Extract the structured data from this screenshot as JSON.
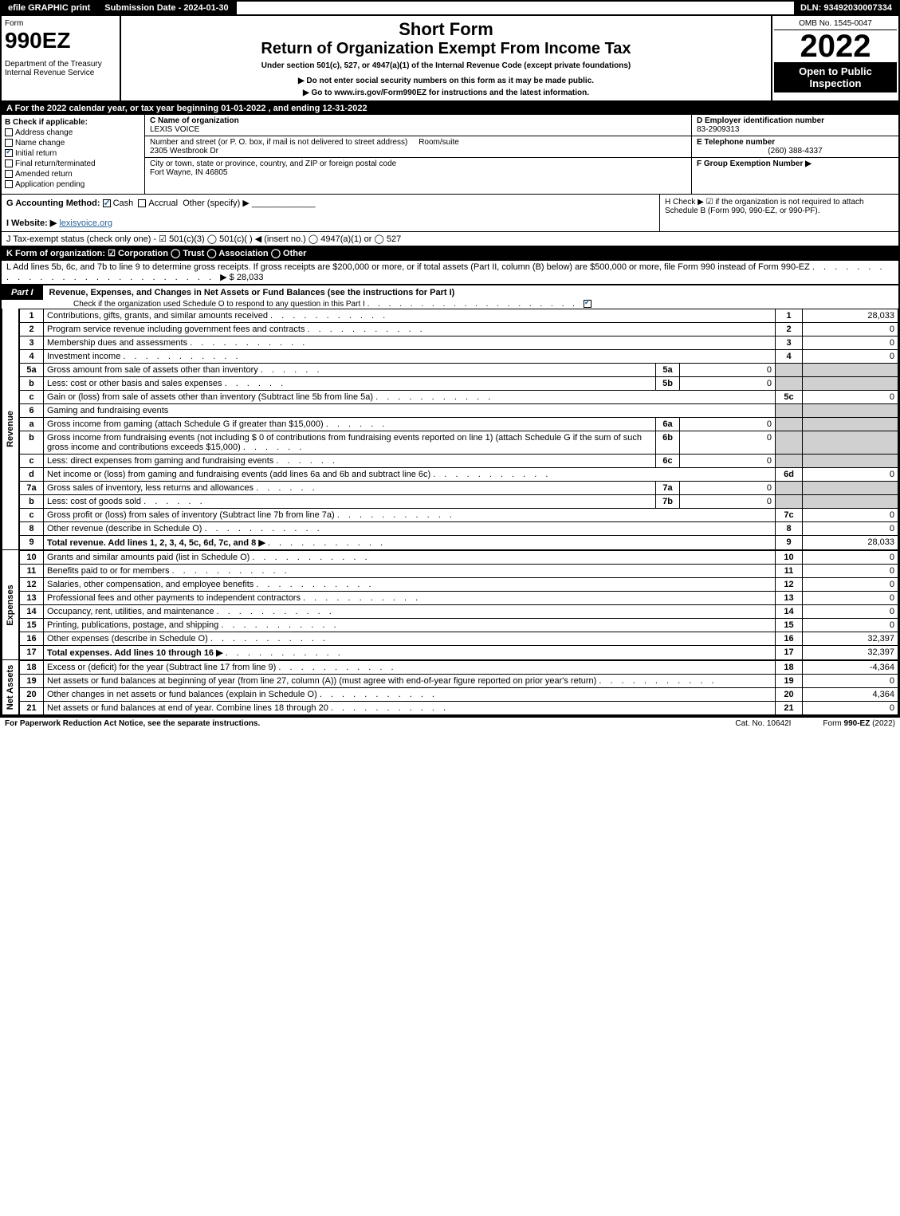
{
  "top_bar": {
    "efile": "efile GRAPHIC print",
    "submission": "Submission Date - 2024-01-30",
    "dln": "DLN: 93492030007334"
  },
  "header": {
    "form_label": "Form",
    "form_number": "990EZ",
    "dept": "Department of the Treasury\nInternal Revenue Service",
    "short_form": "Short Form",
    "return_title": "Return of Organization Exempt From Income Tax",
    "under_section": "Under section 501(c), 527, or 4947(a)(1) of the Internal Revenue Code (except private foundations)",
    "do_not_enter": "▶ Do not enter social security numbers on this form as it may be made public.",
    "go_to": "▶ Go to www.irs.gov/Form990EZ for instructions and the latest information.",
    "omb": "OMB No. 1545-0047",
    "year": "2022",
    "open_to": "Open to Public Inspection"
  },
  "line_a": "A  For the 2022 calendar year, or tax year beginning 01-01-2022 , and ending 12-31-2022",
  "b": {
    "header": "B  Check if applicable:",
    "items": [
      {
        "label": "Address change",
        "checked": false
      },
      {
        "label": "Name change",
        "checked": false
      },
      {
        "label": "Initial return",
        "checked": true
      },
      {
        "label": "Final return/terminated",
        "checked": false
      },
      {
        "label": "Amended return",
        "checked": false
      },
      {
        "label": "Application pending",
        "checked": false
      }
    ]
  },
  "c": {
    "name_label": "C Name of organization",
    "name": "LEXIS VOICE",
    "street_label": "Number and street (or P. O. box, if mail is not delivered to street address)",
    "room_label": "Room/suite",
    "street": "2305 Westbrook Dr",
    "city_label": "City or town, state or province, country, and ZIP or foreign postal code",
    "city": "Fort Wayne, IN  46805"
  },
  "d": {
    "ein_label": "D Employer identification number",
    "ein": "83-2909313",
    "phone_label": "E Telephone number",
    "phone": "(260) 388-4337",
    "group_label": "F Group Exemption Number  ▶"
  },
  "g": {
    "label": "G Accounting Method:",
    "cash": "Cash",
    "accrual": "Accrual",
    "other": "Other (specify) ▶"
  },
  "h": {
    "text": "H  Check ▶ ☑ if the organization is not required to attach Schedule B (Form 990, 990-EZ, or 990-PF)."
  },
  "i": {
    "label": "I Website: ▶",
    "value": "lexisvoice.org"
  },
  "j": {
    "label": "J Tax-exempt status (check only one) - ☑ 501(c)(3)  ◯ 501(c)(  ) ◀ (insert no.)  ◯ 4947(a)(1) or  ◯ 527"
  },
  "k": {
    "label": "K Form of organization:  ☑ Corporation   ◯ Trust   ◯ Association   ◯ Other"
  },
  "l": {
    "text": "L Add lines 5b, 6c, and 7b to line 9 to determine gross receipts. If gross receipts are $200,000 or more, or if total assets (Part II, column (B) below) are $500,000 or more, file Form 990 instead of Form 990-EZ",
    "amount": "▶ $ 28,033"
  },
  "part1": {
    "tab": "Part I",
    "title": "Revenue, Expenses, and Changes in Net Assets or Fund Balances (see the instructions for Part I)",
    "check_line": "Check if the organization used Schedule O to respond to any question in this Part I"
  },
  "revenue": {
    "side_label": "Revenue",
    "rows": [
      {
        "n": "1",
        "desc": "Contributions, gifts, grants, and similar amounts received",
        "rn": "1",
        "amt": "28,033"
      },
      {
        "n": "2",
        "desc": "Program service revenue including government fees and contracts",
        "rn": "2",
        "amt": "0"
      },
      {
        "n": "3",
        "desc": "Membership dues and assessments",
        "rn": "3",
        "amt": "0"
      },
      {
        "n": "4",
        "desc": "Investment income",
        "rn": "4",
        "amt": "0"
      },
      {
        "n": "5a",
        "desc": "Gross amount from sale of assets other than inventory",
        "sub_lbl": "5a",
        "sub_amt": "0"
      },
      {
        "n": "b",
        "desc": "Less: cost or other basis and sales expenses",
        "sub_lbl": "5b",
        "sub_amt": "0"
      },
      {
        "n": "c",
        "desc": "Gain or (loss) from sale of assets other than inventory (Subtract line 5b from line 5a)",
        "rn": "5c",
        "amt": "0"
      },
      {
        "n": "6",
        "desc": "Gaming and fundraising events"
      },
      {
        "n": "a",
        "desc": "Gross income from gaming (attach Schedule G if greater than $15,000)",
        "sub_lbl": "6a",
        "sub_amt": "0"
      },
      {
        "n": "b",
        "desc": "Gross income from fundraising events (not including $ 0 of contributions from fundraising events reported on line 1) (attach Schedule G if the sum of such gross income and contributions exceeds $15,000)",
        "sub_lbl": "6b",
        "sub_amt": "0"
      },
      {
        "n": "c",
        "desc": "Less: direct expenses from gaming and fundraising events",
        "sub_lbl": "6c",
        "sub_amt": "0"
      },
      {
        "n": "d",
        "desc": "Net income or (loss) from gaming and fundraising events (add lines 6a and 6b and subtract line 6c)",
        "rn": "6d",
        "amt": "0"
      },
      {
        "n": "7a",
        "desc": "Gross sales of inventory, less returns and allowances",
        "sub_lbl": "7a",
        "sub_amt": "0"
      },
      {
        "n": "b",
        "desc": "Less: cost of goods sold",
        "sub_lbl": "7b",
        "sub_amt": "0"
      },
      {
        "n": "c",
        "desc": "Gross profit or (loss) from sales of inventory (Subtract line 7b from line 7a)",
        "rn": "7c",
        "amt": "0"
      },
      {
        "n": "8",
        "desc": "Other revenue (describe in Schedule O)",
        "rn": "8",
        "amt": "0"
      },
      {
        "n": "9",
        "desc": "Total revenue. Add lines 1, 2, 3, 4, 5c, 6d, 7c, and 8   ▶",
        "rn": "9",
        "amt": "28,033",
        "bold": true
      }
    ]
  },
  "expenses": {
    "side_label": "Expenses",
    "rows": [
      {
        "n": "10",
        "desc": "Grants and similar amounts paid (list in Schedule O)",
        "rn": "10",
        "amt": "0"
      },
      {
        "n": "11",
        "desc": "Benefits paid to or for members",
        "rn": "11",
        "amt": "0"
      },
      {
        "n": "12",
        "desc": "Salaries, other compensation, and employee benefits",
        "rn": "12",
        "amt": "0"
      },
      {
        "n": "13",
        "desc": "Professional fees and other payments to independent contractors",
        "rn": "13",
        "amt": "0"
      },
      {
        "n": "14",
        "desc": "Occupancy, rent, utilities, and maintenance",
        "rn": "14",
        "amt": "0"
      },
      {
        "n": "15",
        "desc": "Printing, publications, postage, and shipping",
        "rn": "15",
        "amt": "0"
      },
      {
        "n": "16",
        "desc": "Other expenses (describe in Schedule O)",
        "rn": "16",
        "amt": "32,397"
      },
      {
        "n": "17",
        "desc": "Total expenses. Add lines 10 through 16   ▶",
        "rn": "17",
        "amt": "32,397",
        "bold": true
      }
    ]
  },
  "net_assets": {
    "side_label": "Net Assets",
    "rows": [
      {
        "n": "18",
        "desc": "Excess or (deficit) for the year (Subtract line 17 from line 9)",
        "rn": "18",
        "amt": "-4,364"
      },
      {
        "n": "19",
        "desc": "Net assets or fund balances at beginning of year (from line 27, column (A)) (must agree with end-of-year figure reported on prior year's return)",
        "rn": "19",
        "amt": "0"
      },
      {
        "n": "20",
        "desc": "Other changes in net assets or fund balances (explain in Schedule O)",
        "rn": "20",
        "amt": "4,364"
      },
      {
        "n": "21",
        "desc": "Net assets or fund balances at end of year. Combine lines 18 through 20",
        "rn": "21",
        "amt": "0"
      }
    ]
  },
  "footer": {
    "left": "For Paperwork Reduction Act Notice, see the separate instructions.",
    "mid": "Cat. No. 10642I",
    "right": "Form 990-EZ (2022)"
  }
}
